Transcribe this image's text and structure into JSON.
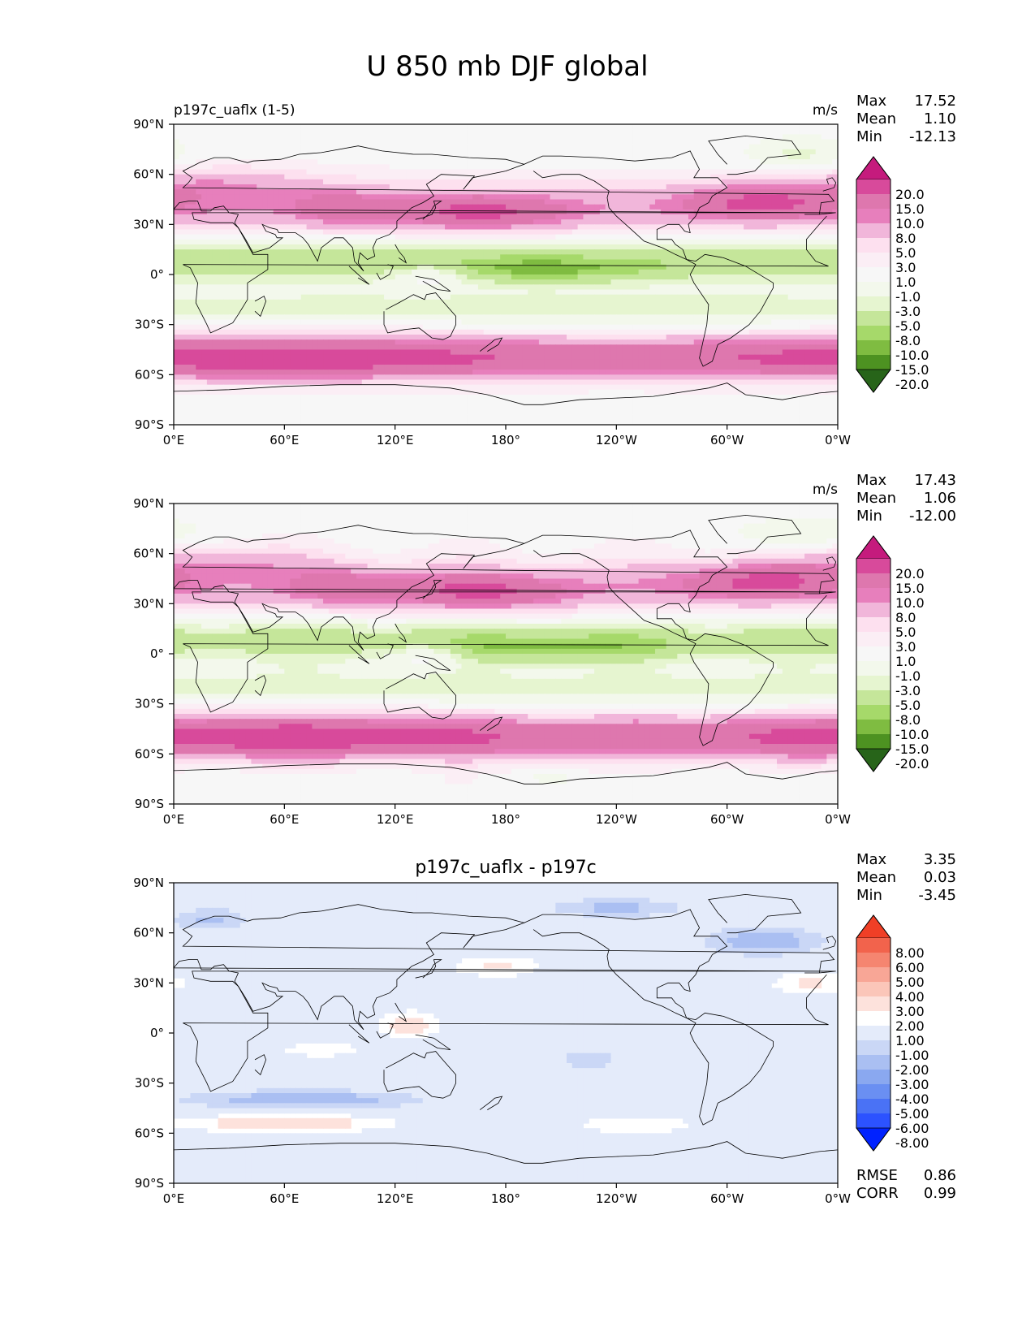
{
  "figure_title": "U 850 mb DJF global",
  "colors": {
    "test_ref_scale": [
      "#276419",
      "#4d9221",
      "#7fbc41",
      "#a6d96a",
      "#c5e69a",
      "#e6f5d0",
      "#f3f8ec",
      "#f7f7f7",
      "#fbeef5",
      "#fde0ef",
      "#f1b6da",
      "#e77fbc",
      "#de77ae",
      "#d84a9b",
      "#c51b7d",
      "#8e0152"
    ],
    "diff_scale": [
      "#0022ff",
      "#2c52ff",
      "#4a72f5",
      "#6a8ff2",
      "#8aa8f0",
      "#aabff2",
      "#cad7f6",
      "#e4ebfa",
      "#ffffff",
      "#fde2dc",
      "#fbc6b9",
      "#f8a696",
      "#f58570",
      "#f2634c",
      "#f03f26",
      "#ff2a00"
    ],
    "coast": "#000000",
    "axis": "#000000"
  },
  "chart_data": [
    {
      "type": "heatmap",
      "panel": "test",
      "left_title": "p197c_uaflx (1-5)",
      "center_title": "",
      "units": "m/s",
      "stats": [
        {
          "label": "Max",
          "value": "17.52"
        },
        {
          "label": "Mean",
          "value": "1.10"
        },
        {
          "label": "Min",
          "value": "-12.13"
        }
      ],
      "xlabels": [
        "0°E",
        "60°E",
        "120°E",
        "180°",
        "120°W",
        "60°W",
        "0°W"
      ],
      "ylabels": [
        "90°N",
        "60°N",
        "30°N",
        "0°",
        "30°S",
        "60°S",
        "90°S"
      ],
      "colorbar_levels": [
        "20.0",
        "15.0",
        "10.0",
        "8.0",
        "5.0",
        "3.0",
        "1.0",
        "-1.0",
        "-3.0",
        "-5.0",
        "-8.0",
        "-10.0",
        "-15.0",
        "-20.0"
      ],
      "colorbar_values": [
        -20,
        -15,
        -10,
        -8,
        -5,
        -3,
        -1,
        1,
        3,
        5,
        8,
        10,
        15,
        20
      ],
      "scale": "test_ref_scale",
      "xlim": [
        0,
        360
      ],
      "ylim": [
        -90,
        90
      ]
    },
    {
      "type": "heatmap",
      "panel": "reference",
      "left_title": "",
      "center_title": "",
      "units": "m/s",
      "stats": [
        {
          "label": "Max",
          "value": "17.43"
        },
        {
          "label": "Mean",
          "value": "1.06"
        },
        {
          "label": "Min",
          "value": "-12.00"
        }
      ],
      "xlabels": [
        "0°E",
        "60°E",
        "120°E",
        "180°",
        "120°W",
        "60°W",
        "0°W"
      ],
      "ylabels": [
        "90°N",
        "60°N",
        "30°N",
        "0°",
        "30°S",
        "60°S",
        "90°S"
      ],
      "colorbar_levels": [
        "20.0",
        "15.0",
        "10.0",
        "8.0",
        "5.0",
        "3.0",
        "1.0",
        "-1.0",
        "-3.0",
        "-5.0",
        "-8.0",
        "-10.0",
        "-15.0",
        "-20.0"
      ],
      "colorbar_values": [
        -20,
        -15,
        -10,
        -8,
        -5,
        -3,
        -1,
        1,
        3,
        5,
        8,
        10,
        15,
        20
      ],
      "scale": "test_ref_scale",
      "xlim": [
        0,
        360
      ],
      "ylim": [
        -90,
        90
      ]
    },
    {
      "type": "heatmap",
      "panel": "difference",
      "left_title": "",
      "center_title": "p197c_uaflx - p197c",
      "units": "",
      "stats": [
        {
          "label": "Max",
          "value": "3.35"
        },
        {
          "label": "Mean",
          "value": "0.03"
        },
        {
          "label": "Min",
          "value": "-3.45"
        }
      ],
      "footer_stats": [
        {
          "label": "RMSE",
          "value": "0.86"
        },
        {
          "label": "CORR",
          "value": "0.99"
        }
      ],
      "xlabels": [
        "0°E",
        "60°E",
        "120°E",
        "180°",
        "120°W",
        "60°W",
        "0°W"
      ],
      "ylabels": [
        "90°N",
        "60°N",
        "30°N",
        "0°",
        "30°S",
        "60°S",
        "90°S"
      ],
      "colorbar_levels": [
        "8.00",
        "6.00",
        "5.00",
        "4.00",
        "3.00",
        "2.00",
        "1.00",
        "-1.00",
        "-2.00",
        "-3.00",
        "-4.00",
        "-5.00",
        "-6.00",
        "-8.00"
      ],
      "colorbar_values": [
        -8,
        -6,
        -5,
        -4,
        -3,
        -2,
        -1,
        1,
        2,
        3,
        4,
        5,
        6,
        8
      ],
      "scale": "diff_scale",
      "xlim": [
        0,
        360
      ],
      "ylim": [
        -90,
        90
      ]
    }
  ]
}
